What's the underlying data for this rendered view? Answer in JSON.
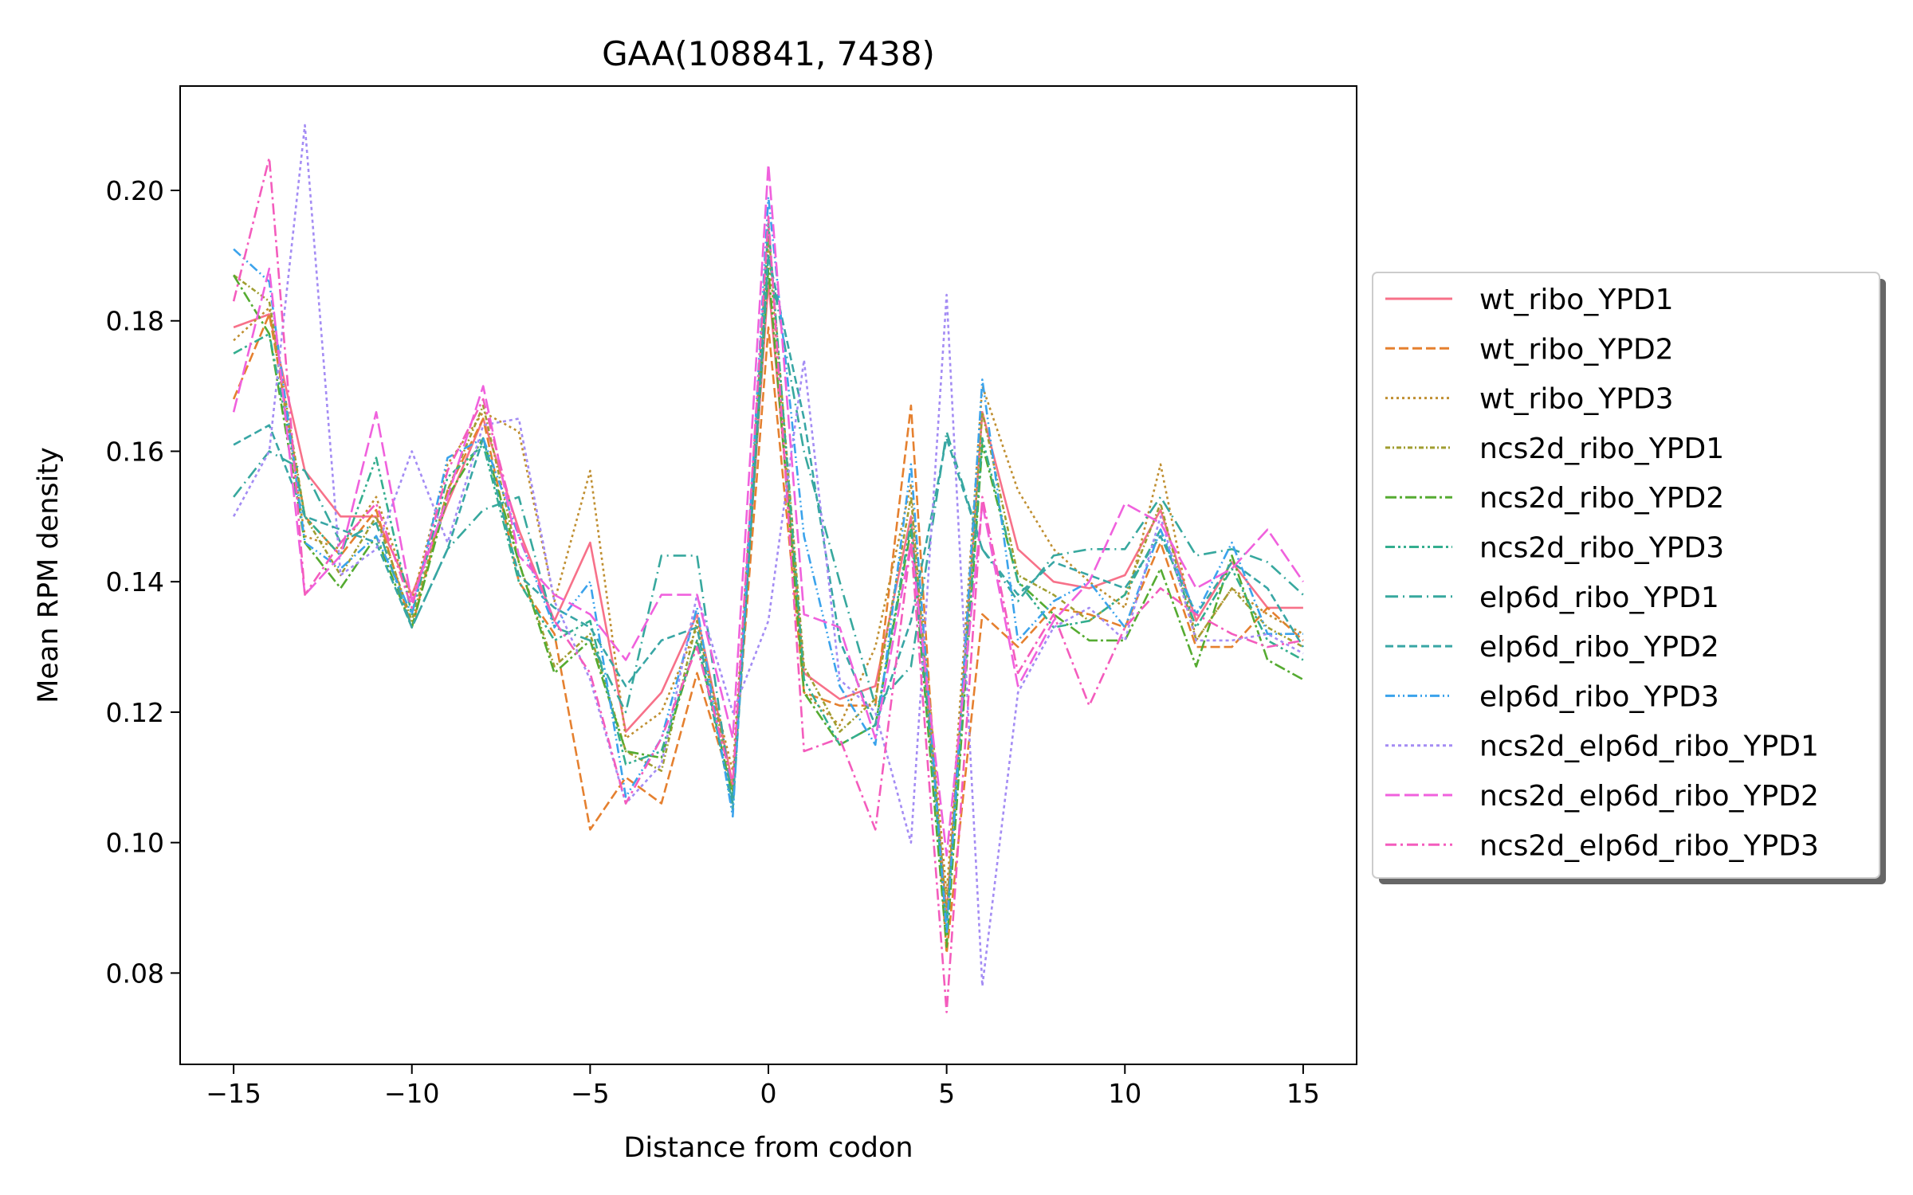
{
  "chart_data": {
    "type": "line",
    "title": "GAA(108841, 7438)",
    "xlabel": "Distance from codon",
    "ylabel": "Mean RPM density",
    "xlim": [
      -16.5,
      16.5
    ],
    "ylim": [
      0.066,
      0.216
    ],
    "x_ticks": [
      -15,
      -10,
      -5,
      0,
      5,
      10,
      15
    ],
    "x_tick_labels": [
      "−15",
      "−10",
      "−5",
      "0",
      "5",
      "10",
      "15"
    ],
    "y_ticks": [
      0.08,
      0.1,
      0.12,
      0.14,
      0.16,
      0.18,
      0.2
    ],
    "y_tick_labels": [
      "0.08",
      "0.10",
      "0.12",
      "0.14",
      "0.16",
      "0.18",
      "0.20"
    ],
    "grid": false,
    "legend_position": "right",
    "x": [
      -15,
      -14,
      -13,
      -12,
      -11,
      -10,
      -9,
      -8,
      -7,
      -6,
      -5,
      -4,
      -3,
      -2,
      -1,
      0,
      1,
      2,
      3,
      4,
      5,
      6,
      7,
      8,
      9,
      10,
      11,
      12,
      13,
      14,
      15
    ],
    "series": [
      {
        "name": "wt_ribo_YPD1",
        "color": "#f77189",
        "dash": "",
        "values": [
          0.179,
          0.181,
          0.157,
          0.15,
          0.15,
          0.138,
          0.152,
          0.165,
          0.148,
          0.134,
          0.146,
          0.117,
          0.123,
          0.135,
          0.109,
          0.186,
          0.126,
          0.122,
          0.124,
          0.15,
          0.089,
          0.166,
          0.145,
          0.14,
          0.139,
          0.141,
          0.151,
          0.134,
          0.143,
          0.136,
          0.136
        ]
      },
      {
        "name": "wt_ribo_YPD2",
        "color": "#e5802f",
        "dash": "dashed",
        "values": [
          0.168,
          0.181,
          0.15,
          0.144,
          0.151,
          0.133,
          0.154,
          0.165,
          0.14,
          0.132,
          0.102,
          0.11,
          0.106,
          0.126,
          0.108,
          0.179,
          0.123,
          0.121,
          0.121,
          0.167,
          0.083,
          0.135,
          0.13,
          0.136,
          0.135,
          0.133,
          0.146,
          0.13,
          0.13,
          0.136,
          0.131
        ]
      },
      {
        "name": "wt_ribo_YPD3",
        "color": "#c08f31",
        "dash": "dotted",
        "values": [
          0.177,
          0.182,
          0.147,
          0.145,
          0.153,
          0.137,
          0.158,
          0.166,
          0.163,
          0.137,
          0.157,
          0.116,
          0.12,
          0.133,
          0.111,
          0.192,
          0.123,
          0.118,
          0.13,
          0.155,
          0.092,
          0.17,
          0.154,
          0.145,
          0.14,
          0.136,
          0.158,
          0.131,
          0.139,
          0.135,
          0.132
        ]
      },
      {
        "name": "ncs2d_ribo_YPD1",
        "color": "#a09e31",
        "dash": "6,3,2,3",
        "values": [
          0.187,
          0.183,
          0.15,
          0.141,
          0.15,
          0.134,
          0.154,
          0.167,
          0.143,
          0.127,
          0.132,
          0.114,
          0.111,
          0.134,
          0.108,
          0.194,
          0.127,
          0.117,
          0.122,
          0.153,
          0.089,
          0.166,
          0.141,
          0.138,
          0.134,
          0.138,
          0.152,
          0.131,
          0.139,
          0.133,
          0.13
        ]
      },
      {
        "name": "ncs2d_ribo_YPD2",
        "color": "#55ab31",
        "dash": "14,4,3,4",
        "values": [
          0.187,
          0.178,
          0.146,
          0.139,
          0.147,
          0.133,
          0.153,
          0.162,
          0.143,
          0.126,
          0.131,
          0.114,
          0.113,
          0.131,
          0.107,
          0.188,
          0.123,
          0.115,
          0.118,
          0.148,
          0.084,
          0.161,
          0.14,
          0.135,
          0.131,
          0.131,
          0.142,
          0.127,
          0.144,
          0.128,
          0.125
        ]
      },
      {
        "name": "ncs2d_ribo_YPD3",
        "color": "#34ae8f",
        "dash": "12,4,3,4,3,4",
        "values": [
          0.175,
          0.178,
          0.15,
          0.144,
          0.159,
          0.135,
          0.156,
          0.161,
          0.14,
          0.131,
          0.134,
          0.112,
          0.114,
          0.131,
          0.106,
          0.195,
          0.125,
          0.115,
          0.118,
          0.149,
          0.087,
          0.162,
          0.14,
          0.133,
          0.134,
          0.138,
          0.148,
          0.133,
          0.142,
          0.131,
          0.128
        ]
      },
      {
        "name": "elp6d_ribo_YPD1",
        "color": "#37a89e",
        "dash": "16,6,2,6",
        "values": [
          0.153,
          0.16,
          0.157,
          0.146,
          0.149,
          0.133,
          0.145,
          0.151,
          0.153,
          0.133,
          0.131,
          0.12,
          0.144,
          0.144,
          0.106,
          0.19,
          0.16,
          0.14,
          0.121,
          0.127,
          0.163,
          0.145,
          0.137,
          0.144,
          0.145,
          0.145,
          0.153,
          0.144,
          0.145,
          0.143,
          0.138
        ]
      },
      {
        "name": "elp6d_ribo_YPD2",
        "color": "#38a6a5",
        "dash": "10,5",
        "values": [
          0.161,
          0.164,
          0.15,
          0.148,
          0.146,
          0.133,
          0.145,
          0.162,
          0.141,
          0.136,
          0.133,
          0.124,
          0.131,
          0.133,
          0.105,
          0.19,
          0.165,
          0.131,
          0.118,
          0.134,
          0.162,
          0.145,
          0.138,
          0.143,
          0.141,
          0.139,
          0.147,
          0.135,
          0.143,
          0.139,
          0.13
        ]
      },
      {
        "name": "elp6d_ribo_YPD3",
        "color": "#3ba3ec",
        "dash": "12,4,2,4,2,4",
        "values": [
          0.191,
          0.186,
          0.146,
          0.142,
          0.147,
          0.135,
          0.159,
          0.162,
          0.147,
          0.133,
          0.14,
          0.107,
          0.116,
          0.136,
          0.104,
          0.199,
          0.147,
          0.124,
          0.115,
          0.158,
          0.086,
          0.171,
          0.131,
          0.137,
          0.14,
          0.133,
          0.148,
          0.135,
          0.146,
          0.132,
          0.132
        ]
      },
      {
        "name": "ncs2d_elp6d_ribo_YPD1",
        "color": "#a48cf4",
        "dash": "4,4",
        "values": [
          0.15,
          0.16,
          0.21,
          0.141,
          0.145,
          0.16,
          0.146,
          0.164,
          0.165,
          0.137,
          0.125,
          0.106,
          0.112,
          0.138,
          0.12,
          0.134,
          0.174,
          0.125,
          0.12,
          0.1,
          0.184,
          0.078,
          0.123,
          0.133,
          0.136,
          0.131,
          0.15,
          0.131,
          0.131,
          0.132,
          0.129
        ]
      },
      {
        "name": "ncs2d_elp6d_ribo_YPD2",
        "color": "#f061dd",
        "dash": "18,6",
        "values": [
          0.166,
          0.188,
          0.138,
          0.144,
          0.166,
          0.137,
          0.153,
          0.17,
          0.144,
          0.138,
          0.135,
          0.128,
          0.138,
          0.138,
          0.116,
          0.204,
          0.135,
          0.133,
          0.116,
          0.146,
          0.098,
          0.152,
          0.124,
          0.134,
          0.14,
          0.152,
          0.149,
          0.139,
          0.142,
          0.148,
          0.14
        ]
      },
      {
        "name": "ncs2d_elp6d_ribo_YPD3",
        "color": "#f45cbd",
        "dash": "14,5,3,5",
        "values": [
          0.183,
          0.205,
          0.138,
          0.146,
          0.152,
          0.136,
          0.157,
          0.168,
          0.147,
          0.134,
          0.126,
          0.106,
          0.116,
          0.13,
          0.109,
          0.196,
          0.114,
          0.116,
          0.102,
          0.146,
          0.074,
          0.153,
          0.126,
          0.135,
          0.121,
          0.133,
          0.139,
          0.135,
          0.132,
          0.13,
          0.131
        ]
      }
    ]
  }
}
